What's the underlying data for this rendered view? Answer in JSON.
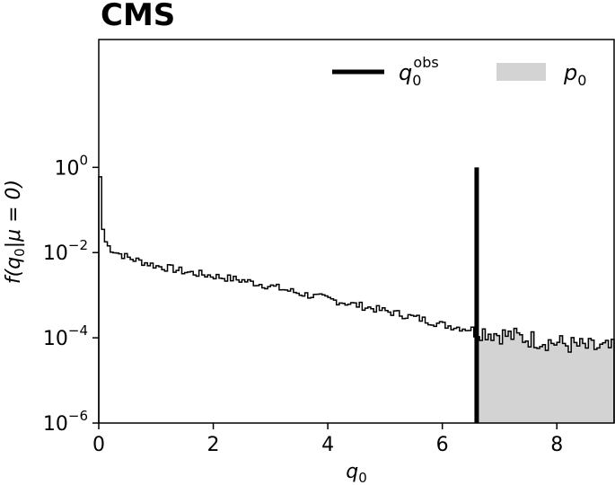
{
  "chart_data": {
    "type": "histogram",
    "title": "",
    "experiment_label": "CMS",
    "xlabel": "q_0",
    "ylabel": "f(q_0|μ = 0)",
    "xlim": [
      0,
      9
    ],
    "ylim": [
      1e-06,
      1000
    ],
    "yscale": "log",
    "x_ticks": [
      0,
      2,
      4,
      6,
      8
    ],
    "y_ticks": [
      {
        "value": 1,
        "label": "10",
        "exp": "0"
      },
      {
        "value": 0.01,
        "label": "10",
        "exp": "−2"
      },
      {
        "value": 0.0001,
        "label": "10",
        "exp": "−4"
      },
      {
        "value": 1e-06,
        "label": "10",
        "exp": "−6"
      }
    ],
    "bin_width": 0.05,
    "bins": [
      [
        0.0,
        0.6
      ],
      [
        0.05,
        0.035
      ],
      [
        0.1,
        0.018
      ],
      [
        0.15,
        0.014
      ],
      [
        0.2,
        0.012
      ],
      [
        0.3,
        0.01
      ],
      [
        0.5,
        0.0075
      ],
      [
        0.75,
        0.006
      ],
      [
        1.0,
        0.0048
      ],
      [
        1.25,
        0.0042
      ],
      [
        1.5,
        0.0035
      ],
      [
        2.0,
        0.0028
      ],
      [
        2.5,
        0.0022
      ],
      [
        3.0,
        0.0016
      ],
      [
        3.5,
        0.0011
      ],
      [
        4.0,
        0.0008
      ],
      [
        4.5,
        0.00058
      ],
      [
        5.0,
        0.00042
      ],
      [
        5.5,
        0.0003
      ],
      [
        6.0,
        0.0002
      ],
      [
        6.6,
        0.00015
      ],
      [
        7.0,
        0.00012
      ],
      [
        7.5,
        9.5e-05
      ],
      [
        8.0,
        7.5e-05
      ],
      [
        8.5,
        6e-05
      ],
      [
        9.0,
        5.5e-05
      ]
    ],
    "observed_q0": 6.6,
    "legend": {
      "position": "top-right",
      "entries": [
        {
          "label": "q",
          "sub": "0",
          "sup": "obs",
          "kind": "line",
          "color": "#000000"
        },
        {
          "label": "p",
          "sub": "0",
          "kind": "fill",
          "color": "#d3d3d3"
        }
      ]
    },
    "colors": {
      "histogram": "#000000",
      "pvalue_fill": "#d3d3d3",
      "observed_line": "#000000"
    }
  }
}
